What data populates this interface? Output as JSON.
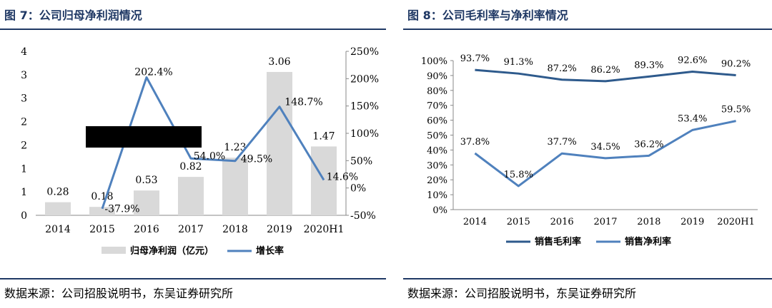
{
  "left": {
    "title": "图 7：公司归母净利润情况",
    "source": "数据来源：公司招股说明书，东吴证券研究所",
    "chart_data": {
      "type": "bar+line",
      "categories": [
        "2014",
        "2015",
        "2016",
        "2017",
        "2018",
        "2019",
        "2020H1"
      ],
      "y_left_ticks": [
        "0",
        "1",
        "1",
        "2",
        "2",
        "3",
        "3",
        "4"
      ],
      "y_left_lim": [
        0,
        3.5
      ],
      "y_right_ticks": [
        "-50%",
        "0%",
        "50%",
        "100%",
        "150%",
        "200%",
        "250%"
      ],
      "y_right_lim": [
        -50,
        250
      ],
      "series": [
        {
          "name": "归母净利润（亿元）",
          "kind": "bar",
          "color": "#d9d9d9",
          "values": [
            0.28,
            0.18,
            0.53,
            0.82,
            1.23,
            3.06,
            1.47
          ],
          "labels": [
            "0.28",
            "0.18",
            "0.53",
            "0.82",
            "1.23",
            "3.06",
            "1.47"
          ]
        },
        {
          "name": "增长率",
          "kind": "line",
          "axis": "right",
          "color": "#4f81bd",
          "values": [
            null,
            -37.9,
            202.4,
            54.0,
            49.5,
            148.7,
            14.6
          ],
          "labels": [
            "",
            "-37.9%",
            "202.4%",
            "54.0%",
            "49.5%",
            "148.7%",
            "14.6%"
          ]
        }
      ],
      "legend_position": "bottom",
      "grid": false
    }
  },
  "right": {
    "title": "图 8：公司毛利率与净利率情况",
    "source": "数据来源：公司招股说明书，东吴证券研究所",
    "chart_data": {
      "type": "line",
      "categories": [
        "2014",
        "2015",
        "2016",
        "2017",
        "2018",
        "2019",
        "2020H1"
      ],
      "y_ticks": [
        "0%",
        "10%",
        "20%",
        "30%",
        "40%",
        "50%",
        "60%",
        "70%",
        "80%",
        "90%",
        "100%"
      ],
      "ylim": [
        0,
        100
      ],
      "series": [
        {
          "name": "销售毛利率",
          "color": "#2e5a8c",
          "values": [
            93.7,
            91.3,
            87.2,
            86.2,
            89.3,
            92.6,
            90.2
          ],
          "labels": [
            "93.7%",
            "91.3%",
            "87.2%",
            "86.2%",
            "89.3%",
            "92.6%",
            "90.2%"
          ]
        },
        {
          "name": "销售净利率",
          "color": "#4f81bd",
          "values": [
            37.8,
            15.8,
            37.7,
            34.5,
            36.2,
            53.4,
            59.5
          ],
          "labels": [
            "37.8%",
            "15.8%",
            "37.7%",
            "34.5%",
            "36.2%",
            "53.4%",
            "59.5%"
          ]
        }
      ],
      "legend_position": "bottom",
      "grid": false
    }
  }
}
